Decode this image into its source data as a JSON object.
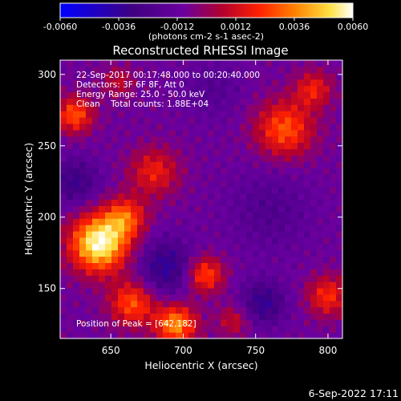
{
  "chart_data": {
    "type": "heatmap",
    "title": "Reconstructed RHESSI Image",
    "xlabel": "Heliocentric X (arcsec)",
    "ylabel": "Heliocentric Y (arcsec)",
    "xlim": [
      615,
      810
    ],
    "ylim": [
      115,
      310
    ],
    "x_ticks": [
      650,
      700,
      750,
      800
    ],
    "y_ticks": [
      150,
      200,
      250,
      300
    ],
    "colorbar": {
      "range": [
        -0.006,
        0.006
      ],
      "ticks": [
        "-0.0060",
        "-0.0036",
        "-0.0012",
        "0.0012",
        "0.0036",
        "0.0060"
      ],
      "unit_label": "(photons cm-2 s-1 asec-2)",
      "colormap": "blue-purple-red-orange-yellow-white"
    },
    "annotations": {
      "time_range": "22-Sep-2017 00:17:48.000 to 00:20:40.000",
      "detectors": "Detectors: 3F 6F 8F, Att 0",
      "energy_range": "Energy Range: 25.0 - 50.0 keV",
      "clean_counts": "Clean    Total counts: 1.88E+04",
      "peak": "Position of Peak = [642,182]"
    },
    "peak_position": [
      642,
      182
    ],
    "sources": [
      {
        "x": 642,
        "y": 182,
        "sigma": 14,
        "amp": 1.0
      },
      {
        "x": 660,
        "y": 200,
        "sigma": 10,
        "amp": 0.5
      },
      {
        "x": 665,
        "y": 140,
        "sigma": 11,
        "amp": 0.55
      },
      {
        "x": 695,
        "y": 125,
        "sigma": 10,
        "amp": 0.7
      },
      {
        "x": 680,
        "y": 232,
        "sigma": 12,
        "amp": 0.4
      },
      {
        "x": 715,
        "y": 160,
        "sigma": 9,
        "amp": 0.55
      },
      {
        "x": 770,
        "y": 262,
        "sigma": 14,
        "amp": 0.55
      },
      {
        "x": 790,
        "y": 290,
        "sigma": 9,
        "amp": 0.4
      },
      {
        "x": 625,
        "y": 272,
        "sigma": 9,
        "amp": 0.55
      },
      {
        "x": 655,
        "y": 295,
        "sigma": 8,
        "amp": 0.25
      },
      {
        "x": 800,
        "y": 145,
        "sigma": 10,
        "amp": 0.45
      },
      {
        "x": 735,
        "y": 128,
        "sigma": 8,
        "amp": 0.3
      }
    ],
    "sinks": [
      {
        "x": 688,
        "y": 165,
        "sigma": 14,
        "amp": 0.75
      },
      {
        "x": 755,
        "y": 140,
        "sigma": 11,
        "amp": 0.7
      },
      {
        "x": 625,
        "y": 225,
        "sigma": 12,
        "amp": 0.6
      },
      {
        "x": 760,
        "y": 205,
        "sigma": 20,
        "amp": 0.35
      },
      {
        "x": 720,
        "y": 290,
        "sigma": 14,
        "amp": 0.3
      }
    ]
  },
  "footer": {
    "date": "6-Sep-2022 17:11"
  }
}
